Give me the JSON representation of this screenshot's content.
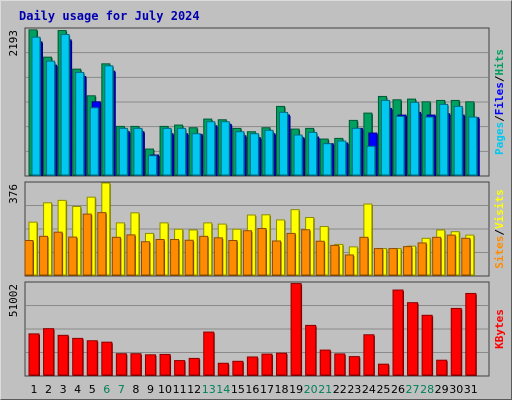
{
  "chart_data": [
    {
      "type": "bar",
      "title": "Daily usage for July 2024",
      "categories": [
        "1",
        "2",
        "3",
        "4",
        "5",
        "6",
        "7",
        "8",
        "9",
        "10",
        "11",
        "12",
        "13",
        "14",
        "15",
        "16",
        "17",
        "18",
        "19",
        "20",
        "21",
        "22",
        "23",
        "24",
        "25",
        "26",
        "27",
        "28",
        "29",
        "30",
        "31"
      ],
      "weekend_days": [
        "6",
        "7",
        "13",
        "14",
        "20",
        "21",
        "27",
        "28"
      ],
      "ymax_label": "2193",
      "ylim": [
        0,
        2193
      ],
      "grid": true,
      "series": [
        {
          "name": "Hits",
          "color": "#00a060",
          "values": [
            2180,
            1770,
            2170,
            1590,
            1190,
            1670,
            730,
            730,
            390,
            730,
            750,
            710,
            840,
            830,
            700,
            650,
            710,
            1030,
            690,
            700,
            540,
            550,
            820,
            930,
            1180,
            1130,
            1140,
            1100,
            1120,
            1120,
            1100
          ]
        },
        {
          "name": "Files",
          "color": "#0000ff",
          "values": [
            2000,
            1650,
            2030,
            1480,
            1100,
            1560,
            650,
            650,
            300,
            620,
            620,
            610,
            740,
            760,
            590,
            560,
            620,
            900,
            560,
            570,
            470,
            480,
            700,
            630,
            1000,
            900,
            940,
            900,
            920,
            900,
            860
          ]
        },
        {
          "name": "Pages",
          "color": "#00c8f0",
          "values": [
            2070,
            1710,
            2110,
            1540,
            1010,
            1640,
            700,
            700,
            290,
            700,
            700,
            620,
            800,
            800,
            650,
            620,
            670,
            940,
            600,
            640,
            470,
            510,
            700,
            430,
            1120,
            880,
            1090,
            870,
            1060,
            1030,
            870
          ]
        }
      ],
      "side_labels": [
        {
          "text": "Pages",
          "color": "#00c8f0"
        },
        {
          "text": "/",
          "color": "#000000"
        },
        {
          "text": "Files",
          "color": "#0000ff"
        },
        {
          "text": "/",
          "color": "#000000"
        },
        {
          "text": "Hits",
          "color": "#00a060"
        }
      ]
    },
    {
      "type": "bar",
      "categories": [
        "1",
        "2",
        "3",
        "4",
        "5",
        "6",
        "7",
        "8",
        "9",
        "10",
        "11",
        "12",
        "13",
        "14",
        "15",
        "16",
        "17",
        "18",
        "19",
        "20",
        "21",
        "22",
        "23",
        "24",
        "25",
        "26",
        "27",
        "28",
        "29",
        "30",
        "31"
      ],
      "ymax_label": "376",
      "ylim": [
        0,
        376
      ],
      "grid": true,
      "series": [
        {
          "name": "Visits",
          "color": "#ffff00",
          "values": [
            216,
            295,
            305,
            280,
            318,
            376,
            213,
            254,
            170,
            213,
            187,
            184,
            213,
            208,
            187,
            245,
            246,
            225,
            267,
            235,
            198,
            125,
            115,
            290,
            108,
            108,
            118,
            150,
            184,
            177,
            163
          ]
        },
        {
          "name": "Sites",
          "color": "#ff8c00",
          "values": [
            141,
            158,
            175,
            155,
            249,
            255,
            154,
            164,
            136,
            145,
            145,
            142,
            158,
            152,
            141,
            181,
            190,
            139,
            170,
            185,
            138,
            121,
            82,
            154,
            108,
            108,
            116,
            131,
            154,
            163,
            150
          ]
        }
      ],
      "side_labels": [
        {
          "text": "Sites",
          "color": "#ff8c00"
        },
        {
          "text": "/",
          "color": "#000000"
        },
        {
          "text": "Visits",
          "color": "#ffff00"
        }
      ]
    },
    {
      "type": "bar",
      "categories": [
        "1",
        "2",
        "3",
        "4",
        "5",
        "6",
        "7",
        "8",
        "9",
        "10",
        "11",
        "12",
        "13",
        "14",
        "15",
        "16",
        "17",
        "18",
        "19",
        "20",
        "21",
        "22",
        "23",
        "24",
        "25",
        "26",
        "27",
        "28",
        "29",
        "30",
        "31"
      ],
      "ymax_label": "51002",
      "ylim": [
        0,
        51002
      ],
      "grid": true,
      "series": [
        {
          "name": "KBytes",
          "color": "#ff0000",
          "values": [
            22800,
            25700,
            22000,
            20300,
            19000,
            18200,
            11800,
            11800,
            11200,
            11400,
            8000,
            9200,
            23800,
            6500,
            7600,
            10000,
            11600,
            12100,
            50700,
            27500,
            13800,
            11700,
            10200,
            22300,
            6000,
            47100,
            40100,
            33100,
            8200,
            36900,
            45200
          ]
        }
      ],
      "side_labels": [
        {
          "text": "KBytes",
          "color": "#ff0000"
        }
      ]
    }
  ]
}
